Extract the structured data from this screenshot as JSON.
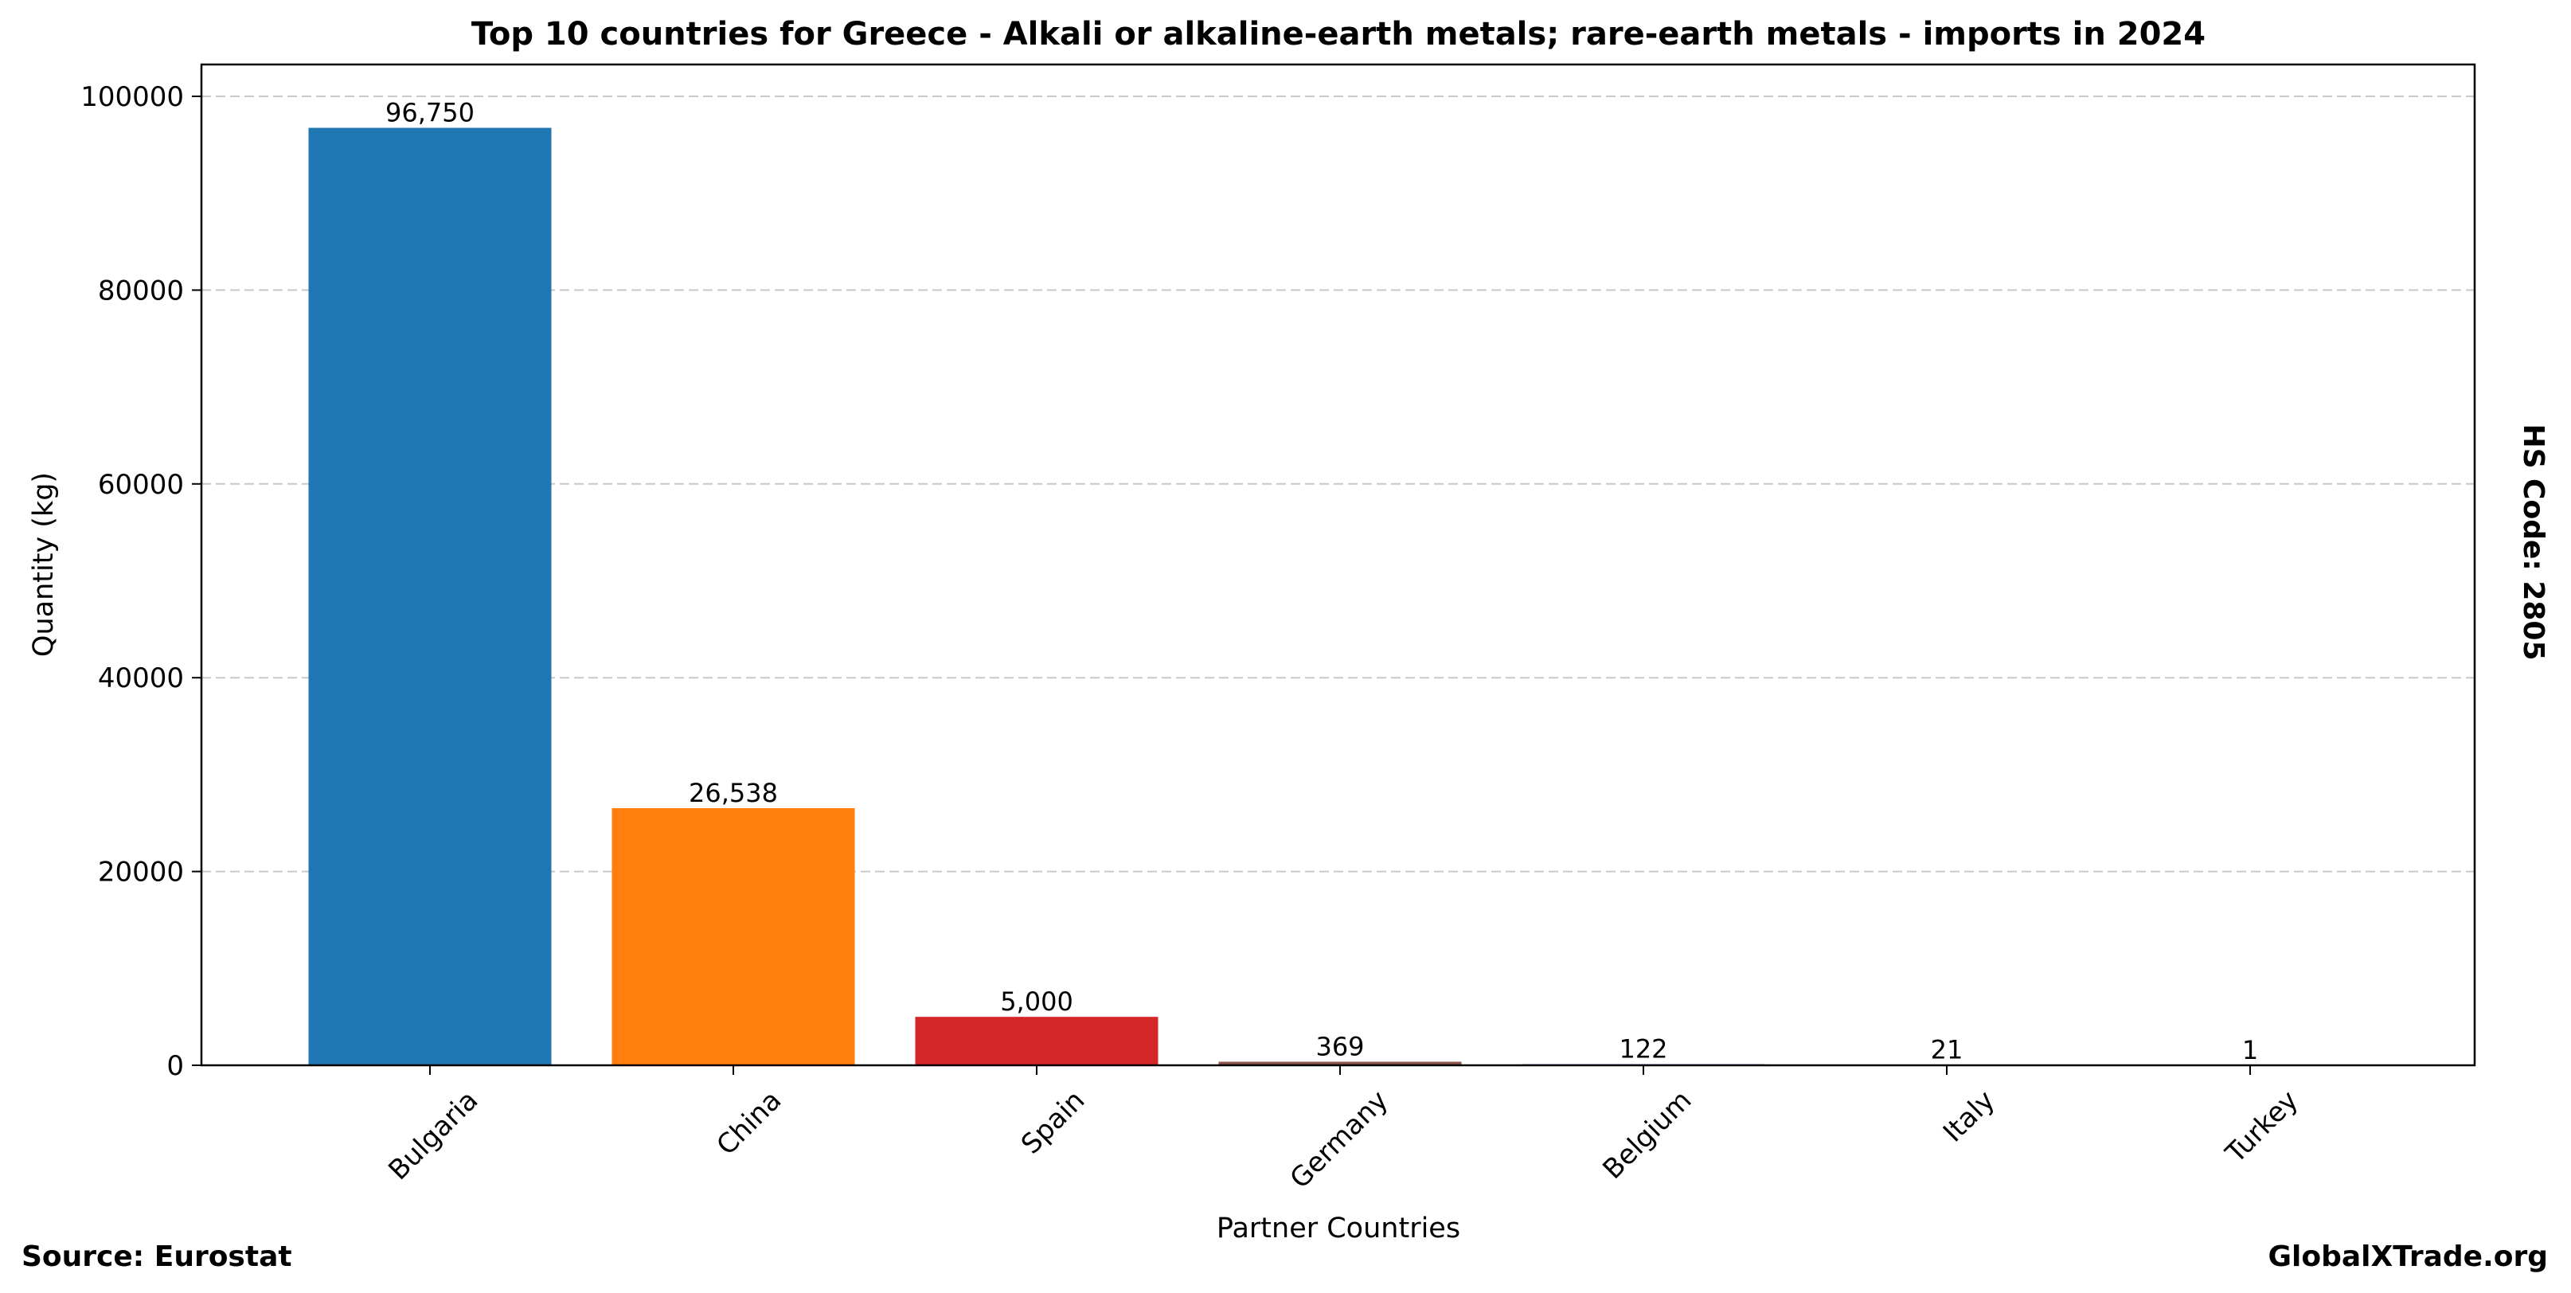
{
  "chart_data": {
    "type": "bar",
    "title": "Top 10 countries for Greece - Alkali or alkaline-earth metals; rare-earth metals - imports in 2024",
    "xlabel": "Partner Countries",
    "ylabel": "Quantity (kg)",
    "categories": [
      "Bulgaria",
      "China",
      "Spain",
      "Germany",
      "Belgium",
      "Italy",
      "Turkey"
    ],
    "values": [
      96750,
      26538,
      5000,
      369,
      122,
      21,
      1
    ],
    "value_labels": [
      "96,750",
      "26,538",
      "5,000",
      "369",
      "122",
      "21",
      "1"
    ],
    "colors": [
      "#1f77b4",
      "#ff7f0e",
      "#d62728",
      "#8c564b",
      "#9467bd",
      "#e377c2",
      "#7f7f7f"
    ],
    "ylim": [
      0,
      100000
    ],
    "yticks": [
      0,
      20000,
      40000,
      60000,
      80000,
      100000
    ],
    "ytick_labels": [
      "0",
      "20000",
      "40000",
      "60000",
      "80000",
      "100000"
    ],
    "grid": "y-dashed",
    "side_label": "HS Code: 2805"
  },
  "footer": {
    "source": "Source: Eurostat",
    "brand": "GlobalXTrade.org"
  }
}
